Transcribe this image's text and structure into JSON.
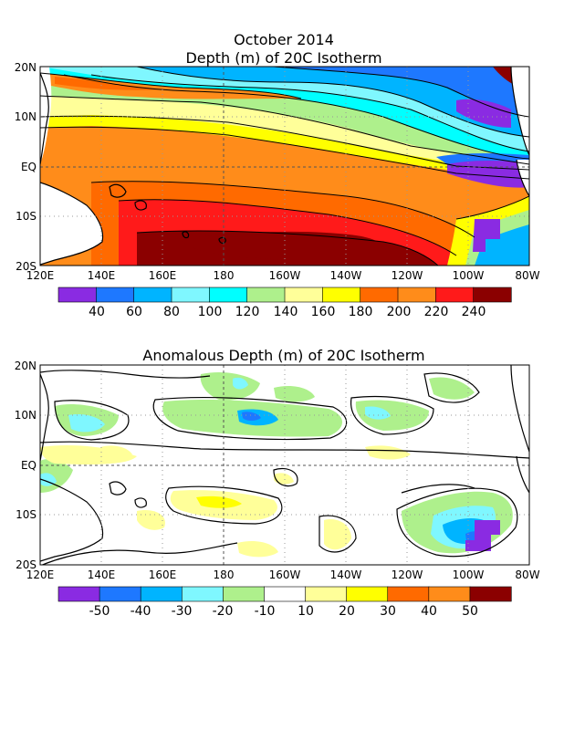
{
  "figure": {
    "title": "October 2014"
  },
  "panel1": {
    "title": "Depth (m) of 20C Isotherm",
    "lat_labels": [
      "20N",
      "10N",
      "EQ",
      "10S",
      "20S"
    ],
    "lon_labels": [
      "120E",
      "140E",
      "160E",
      "180",
      "160W",
      "140W",
      "120W",
      "100W",
      "80W"
    ],
    "colorbar": {
      "colors": [
        "#8a2be2",
        "#1e78ff",
        "#00b4ff",
        "#7ff7ff",
        "#00ffff",
        "#aef08c",
        "#ffff99",
        "#ffff00",
        "#ff6a00",
        "#ff8c1a",
        "#ff1a1a",
        "#8b0000"
      ],
      "labels": [
        "40",
        "60",
        "80",
        "100",
        "120",
        "140",
        "160",
        "180",
        "200",
        "220",
        "240"
      ]
    }
  },
  "panel2": {
    "title": "Anomalous Depth (m) of 20C Isotherm",
    "lat_labels": [
      "20N",
      "10N",
      "EQ",
      "10S",
      "20S"
    ],
    "lon_labels": [
      "120E",
      "140E",
      "160E",
      "180",
      "160W",
      "140W",
      "120W",
      "100W",
      "80W"
    ],
    "colorbar": {
      "colors": [
        "#8a2be2",
        "#1e78ff",
        "#00b4ff",
        "#7ff7ff",
        "#aef08c",
        "#ffffff",
        "#ffff99",
        "#ffff00",
        "#ff6a00",
        "#ff8c1a",
        "#8b0000"
      ],
      "labels": [
        "-50",
        "-40",
        "-30",
        "-20",
        "-10",
        "10",
        "20",
        "30",
        "40",
        "50"
      ]
    }
  }
}
